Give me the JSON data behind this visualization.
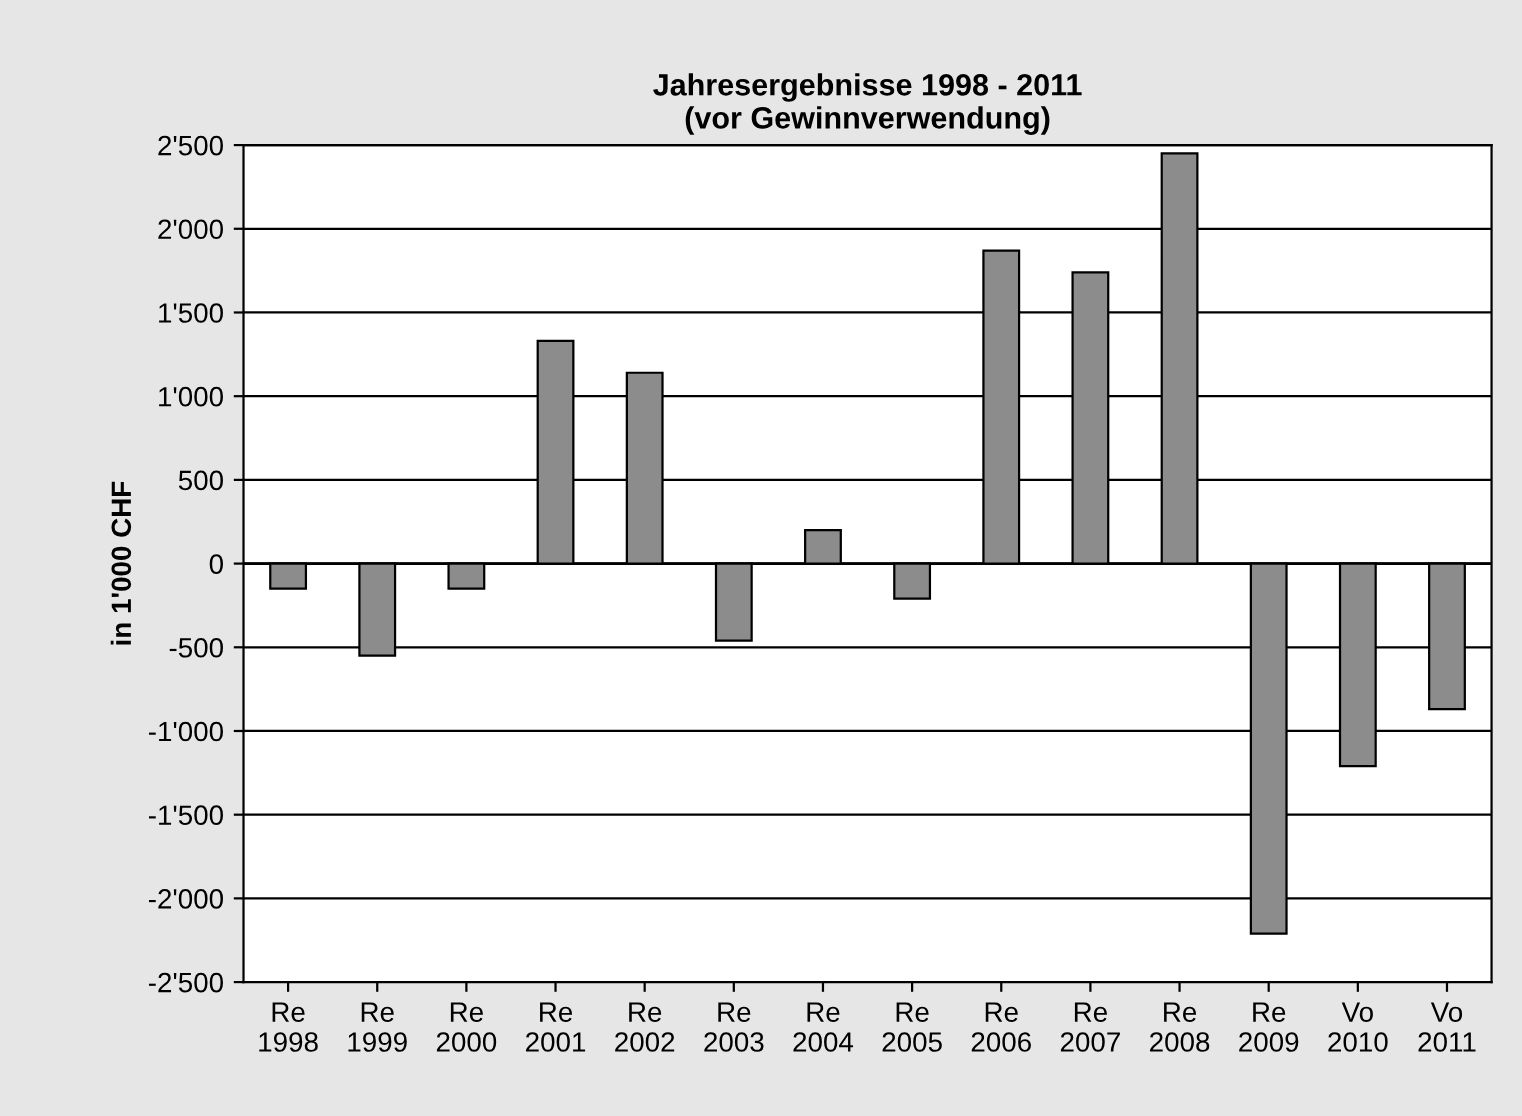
{
  "chart_data": {
    "type": "bar",
    "title": "Jahresergebnisse 1998 - 2011\n(vor Gewinnverwendung)",
    "ylabel": "in 1'000 CHF",
    "categories": [
      "Re\n1998",
      "Re\n1999",
      "Re\n2000",
      "Re\n2001",
      "Re\n2002",
      "Re\n2003",
      "Re\n2004",
      "Re\n2005",
      "Re\n2006",
      "Re\n2007",
      "Re\n2008",
      "Re\n2009",
      "Vo\n2010",
      "Vo\n2011"
    ],
    "values": [
      -150,
      -550,
      -150,
      1330,
      1140,
      -460,
      200,
      -210,
      1870,
      1740,
      2450,
      -2210,
      -1210,
      -870
    ],
    "color": "#8c8c8c",
    "ylim": [
      -2500,
      2500
    ],
    "yticks": [
      {
        "value": -2500,
        "label": "-2'500"
      },
      {
        "value": -2000,
        "label": "-2'000"
      },
      {
        "value": -1500,
        "label": "-1'500"
      },
      {
        "value": -1000,
        "label": "-1'000"
      },
      {
        "value": -500,
        "label": "-500"
      },
      0,
      500,
      {
        "value": 1000,
        "label": "1'000"
      },
      {
        "value": 1500,
        "label": "1'500"
      },
      {
        "value": 2000,
        "label": "2'000"
      },
      {
        "value": 2500,
        "label": "2'500"
      }
    ],
    "grid": "y"
  }
}
